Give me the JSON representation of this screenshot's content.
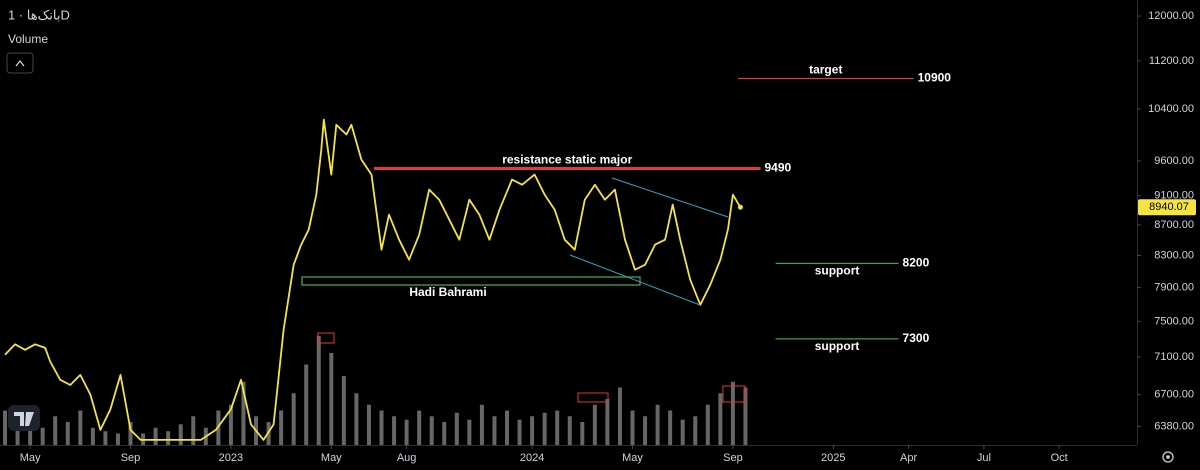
{
  "chart_data": {
    "type": "line",
    "title": "بانک‌ها · 1D",
    "log_scale": true,
    "color": "#f5e342",
    "x": [
      -1.0,
      -0.6,
      -0.2,
      0.2,
      0.6,
      0.8,
      1.2,
      1.6,
      2.0,
      2.4,
      2.8,
      3.2,
      3.6,
      4.0,
      4.4,
      5.2,
      6.0,
      6.8,
      7.4,
      8.0,
      8.4,
      8.8,
      9.3,
      9.7,
      10.1,
      10.5,
      10.8,
      11.1,
      11.4,
      11.6,
      11.7,
      12.0,
      12.2,
      12.6,
      12.8,
      13.2,
      13.6,
      14.0,
      14.3,
      14.7,
      15.1,
      15.5,
      15.9,
      16.3,
      16.7,
      17.1,
      17.5,
      17.9,
      18.3,
      18.7,
      19.2,
      19.6,
      20.1,
      20.5,
      20.9,
      21.3,
      21.7,
      22.1,
      22.5,
      22.9,
      23.3,
      23.7,
      24.1,
      24.5,
      24.9,
      25.3,
      25.6,
      25.9,
      26.3,
      26.7,
      27.1,
      27.5,
      27.8,
      28.0,
      28.3
    ],
    "values": [
      7124,
      7240,
      7179,
      7240,
      7200,
      7050,
      6855,
      6800,
      6907,
      6700,
      6346,
      6550,
      6907,
      6346,
      6249,
      6249,
      6249,
      6249,
      6346,
      6550,
      6855,
      6400,
      6249,
      6400,
      7403,
      8183,
      8440,
      8637,
      9115,
      9770,
      10232,
      9401,
      10150,
      10000,
      10150,
      9620,
      9401,
      8374,
      8838,
      8505,
      8247,
      8570,
      9186,
      9045,
      8771,
      8505,
      9045,
      8838,
      8505,
      8906,
      9329,
      9256,
      9401,
      9115,
      8906,
      8505,
      8374,
      9045,
      9256,
      9045,
      9186,
      8505,
      8121,
      8183,
      8440,
      8505,
      8976,
      8505,
      7997,
      7694,
      7935,
      8247,
      8637,
      9115,
      8940.07
    ],
    "volume": {
      "name": "Volume",
      "color": "#8a8a8a",
      "x": [
        -1,
        -0.5,
        0,
        0.5,
        1,
        1.5,
        2,
        2.5,
        3,
        3.5,
        4,
        4.5,
        5,
        5.5,
        6,
        6.5,
        7,
        7.5,
        8,
        8.5,
        9,
        9.5,
        10,
        10.5,
        11,
        11.5,
        12,
        12.5,
        13,
        13.5,
        14,
        14.5,
        15,
        15.5,
        16,
        16.5,
        17,
        17.5,
        18,
        18.5,
        19,
        19.5,
        20,
        20.5,
        21,
        21.5,
        22,
        22.5,
        23,
        23.5,
        24,
        24.5,
        25,
        25.5,
        26,
        26.5,
        27,
        27.5,
        28,
        28.5
      ],
      "values": [
        30,
        25,
        20,
        15,
        25,
        20,
        30,
        15,
        12,
        10,
        20,
        10,
        15,
        12,
        18,
        25,
        15,
        30,
        35,
        55,
        25,
        20,
        30,
        45,
        70,
        95,
        80,
        60,
        45,
        35,
        30,
        25,
        22,
        30,
        25,
        20,
        28,
        22,
        35,
        25,
        30,
        22,
        25,
        28,
        30,
        25,
        20,
        35,
        40,
        50,
        30,
        25,
        35,
        30,
        22,
        25,
        35,
        45,
        55,
        50
      ],
      "vlim": [
        0,
        100
      ]
    },
    "annotations": [
      {
        "label": "target",
        "value": 10900,
        "x": [
          28.2,
          35.2
        ],
        "color": "#e53935"
      },
      {
        "label": "resistance static major",
        "value": 9490,
        "x": [
          13.7,
          29.1
        ],
        "color": "#e53935"
      },
      {
        "label": "support",
        "value": 8200,
        "x": [
          29.7,
          34.6
        ],
        "color": "#43a047"
      },
      {
        "label": "support",
        "value": 7300,
        "x": [
          29.7,
          34.6
        ],
        "color": "#43a047"
      }
    ],
    "note": "Hadi Bahrami",
    "xlim": [
      -1.2,
      44.1
    ],
    "ylim": [
      6200,
      12300
    ],
    "xticks": [
      {
        "value": 0,
        "label": "May"
      },
      {
        "value": 4,
        "label": "Sep"
      },
      {
        "value": 8,
        "label": "2023"
      },
      {
        "value": 12,
        "label": "May"
      },
      {
        "value": 15,
        "label": "Aug"
      },
      {
        "value": 20,
        "label": "2024"
      },
      {
        "value": 24,
        "label": "May"
      },
      {
        "value": 28,
        "label": "Sep"
      },
      {
        "value": 32,
        "label": "2025"
      },
      {
        "value": 35,
        "label": "Apr"
      },
      {
        "value": 38,
        "label": "Jul"
      },
      {
        "value": 41,
        "label": "Oct"
      }
    ],
    "yticks": [
      {
        "value": 12000,
        "label": "12000.00"
      },
      {
        "value": 11200,
        "label": "11200.00"
      },
      {
        "value": 10400,
        "label": "10400.00"
      },
      {
        "value": 9600,
        "label": "9600.00"
      },
      {
        "value": 9100,
        "label": "9100.00"
      },
      {
        "value": 8700,
        "label": "8700.00"
      },
      {
        "value": 8300,
        "label": "8300.00"
      },
      {
        "value": 7900,
        "label": "7900.00"
      },
      {
        "value": 7500,
        "label": "7500.00"
      },
      {
        "value": 7100,
        "label": "7100.00"
      },
      {
        "value": 6700,
        "label": "6700.00"
      },
      {
        "value": 6380,
        "label": "6380.00"
      }
    ]
  }
}
